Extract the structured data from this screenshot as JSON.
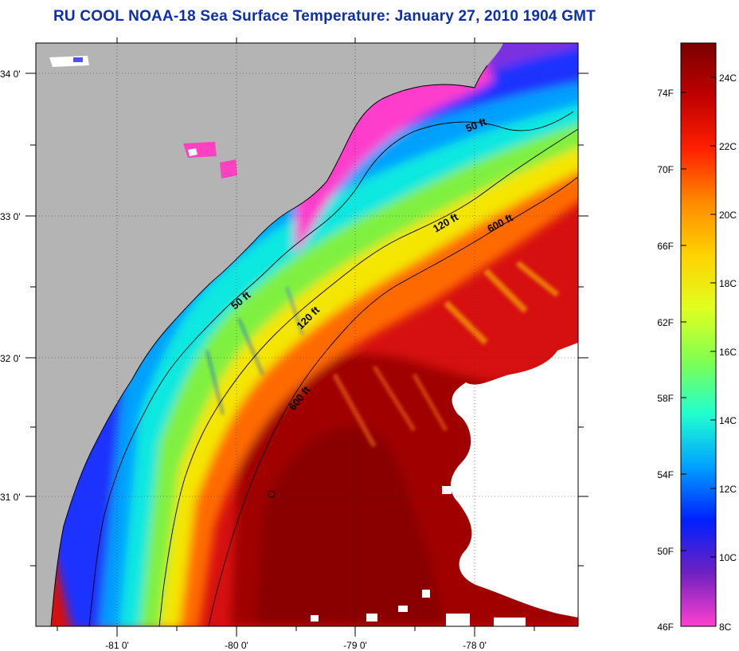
{
  "title": "RU COOL  NOAA-18  Sea Surface Temperature:  January 27, 2010 1904 GMT",
  "map": {
    "lat_ticks": [
      "34 0'",
      "33 0'",
      "32 0'",
      "31 0'"
    ],
    "lon_ticks": [
      "-81 0'",
      "-80 0'",
      "-79 0'",
      "-78 0'"
    ],
    "contour_labels": {
      "c50_north": "50 ft",
      "c50_south": "50 ft",
      "c120_north": "120 ft",
      "c120_south": "120 ft",
      "c600_north": "600 ft",
      "c600_south": "600 ft"
    },
    "colors": {
      "land": "#b4b4b4",
      "cloud": "#ffffff",
      "warm": "#a00000",
      "cold": "#ff3ccc"
    }
  },
  "colorbar": {
    "fahrenheit": [
      "74F",
      "70F",
      "66F",
      "62F",
      "58F",
      "54F",
      "50F",
      "46F"
    ],
    "celsius": [
      "24C",
      "22C",
      "20C",
      "18C",
      "16C",
      "14C",
      "12C",
      "10C",
      "8C"
    ],
    "stops": [
      "#7a0000",
      "#c00000",
      "#ff2000",
      "#ff8a00",
      "#ffd200",
      "#e0ff20",
      "#80ff50",
      "#20ffd0",
      "#00a0ff",
      "#0020ff",
      "#7020c0",
      "#ff40d0"
    ]
  }
}
